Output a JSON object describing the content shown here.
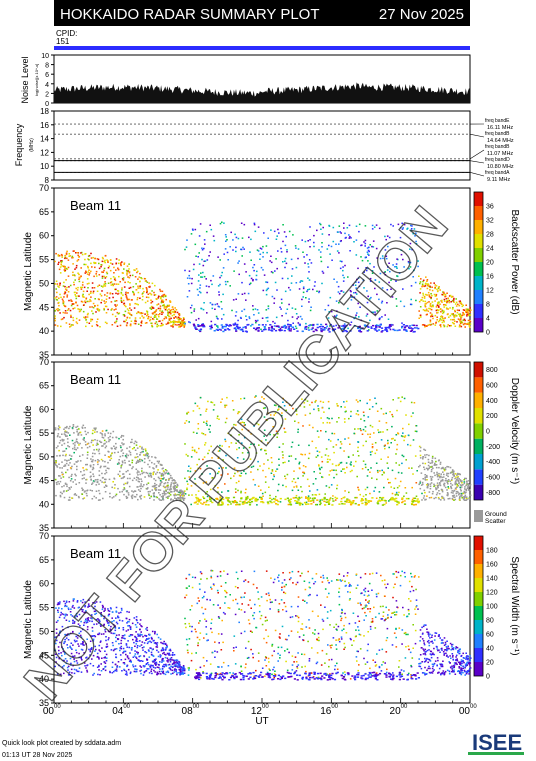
{
  "header": {
    "title": "HOKKAIDO RADAR SUMMARY PLOT",
    "date": "27 Nov 2025"
  },
  "cpid": {
    "label": "CPID:",
    "value": "151"
  },
  "noise_panel": {
    "ylabel": "Noise Level",
    "ylabel_unit": "log(noise)[x 10^-x]",
    "yticks": [
      "0",
      "2",
      "4",
      "6",
      "8",
      "10"
    ],
    "ylim": [
      0,
      10
    ]
  },
  "freq_panel": {
    "ylabel": "Frequency",
    "ylabel_unit": "(MHz)",
    "yticks": [
      "8",
      "10",
      "12",
      "14",
      "16",
      "18"
    ],
    "ylim": [
      8,
      18
    ],
    "bands": [
      {
        "label": "freq bandE",
        "value": "16.11 MHz",
        "freq": 16.11
      },
      {
        "label": "freq bandB",
        "value": "14.64 MHz",
        "freq": 14.64
      },
      {
        "label": "freq bandB",
        "value": "11.07 MHz",
        "freq": 11.07
      },
      {
        "label": "freq bandD",
        "value": "10.80 MHz",
        "freq": 10.8
      },
      {
        "label": "freq bandA",
        "value": "9.11 MHz",
        "freq": 9.11
      }
    ]
  },
  "panels": [
    {
      "id": "power",
      "beam": "Beam 11",
      "ylabel": "Magnetic Latitude",
      "yticks": [
        "35",
        "40",
        "45",
        "50",
        "55",
        "60",
        "65",
        "70"
      ],
      "cbar_label": "Backscatter Power (dB)",
      "cbar_ticks": [
        "0",
        "4",
        "8",
        "12",
        "16",
        "20",
        "24",
        "28",
        "32",
        "36"
      ],
      "cbar_colors": [
        "#5a00c8",
        "#3030ff",
        "#2080ff",
        "#00b4c8",
        "#00c050",
        "#80d000",
        "#e0e000",
        "#ffb000",
        "#ff6000",
        "#e01000"
      ]
    },
    {
      "id": "velocity",
      "beam": "Beam 11",
      "ylabel": "Magnetic Latitude",
      "yticks": [
        "35",
        "40",
        "45",
        "50",
        "55",
        "60",
        "65",
        "70"
      ],
      "cbar_label": "Doppler Velocity (m s⁻¹)",
      "cbar_ticks": [
        "800",
        "600",
        "400",
        "200",
        "0",
        "-200",
        "-400",
        "-600",
        "-800"
      ],
      "cbar_colors": [
        "#3a00b0",
        "#2040ff",
        "#00a0d0",
        "#00b060",
        "#80d000",
        "#e0e000",
        "#ffb000",
        "#ff6000",
        "#d01000"
      ],
      "ground_scatter": "Ground Scatter",
      "ground_color": "#9a9a9a"
    },
    {
      "id": "width",
      "beam": "Beam 11",
      "ylabel": "Magnetic Latitude",
      "yticks": [
        "35",
        "40",
        "45",
        "50",
        "55",
        "60",
        "65",
        "70"
      ],
      "cbar_label": "Spectral Width (m s⁻¹)",
      "cbar_ticks": [
        "0",
        "20",
        "40",
        "60",
        "80",
        "100",
        "120",
        "140",
        "160",
        "180"
      ],
      "cbar_colors": [
        "#5a00c8",
        "#3030ff",
        "#2080ff",
        "#00b4c8",
        "#00c050",
        "#80d000",
        "#e0e000",
        "#ffb000",
        "#ff6000",
        "#e01000"
      ]
    }
  ],
  "xaxis": {
    "label": "UT",
    "ticks": [
      {
        "h": "00",
        "m": "00"
      },
      {
        "h": "04",
        "m": "00"
      },
      {
        "h": "08",
        "m": "00"
      },
      {
        "h": "12",
        "m": "00"
      },
      {
        "h": "16",
        "m": "00"
      },
      {
        "h": "20",
        "m": "00"
      },
      {
        "h": "00",
        "m": "00"
      }
    ]
  },
  "watermark": "NOT FOR PUBLICATION",
  "footer": {
    "line1": "Quick look plot created by sddata.adm",
    "line2": "01:13 UT 28 Nov 2025",
    "logo": "ISEE"
  },
  "chart_data": [
    {
      "type": "bar",
      "title": "Noise Level",
      "ylim": [
        0,
        10
      ],
      "note": "noise level time series, approx 2-4 throughout day"
    },
    {
      "type": "line",
      "title": "Frequency",
      "ylim": [
        8,
        18
      ],
      "series": [
        {
          "name": "freq bandE",
          "values": [
            16.11
          ]
        },
        {
          "name": "freq bandB",
          "values": [
            14.64
          ]
        },
        {
          "name": "freq bandB",
          "values": [
            11.07
          ]
        },
        {
          "name": "freq bandD",
          "values": [
            10.8
          ]
        },
        {
          "name": "freq bandA",
          "values": [
            9.11
          ]
        }
      ]
    },
    {
      "type": "heatmap",
      "title": "Beam 11",
      "ylabel": "Magnetic Latitude",
      "ylim": [
        35,
        70
      ],
      "x_range_ut": [
        0,
        24
      ],
      "colorbar": "Backscatter Power (dB)",
      "clim": [
        0,
        36
      ]
    },
    {
      "type": "heatmap",
      "title": "Beam 11",
      "ylabel": "Magnetic Latitude",
      "ylim": [
        35,
        70
      ],
      "x_range_ut": [
        0,
        24
      ],
      "colorbar": "Doppler Velocity (m s⁻¹)",
      "clim": [
        -800,
        800
      ]
    },
    {
      "type": "heatmap",
      "title": "Beam 11",
      "ylabel": "Magnetic Latitude",
      "ylim": [
        35,
        70
      ],
      "x_range_ut": [
        0,
        24
      ],
      "colorbar": "Spectral Width (m s⁻¹)",
      "clim": [
        0,
        180
      ]
    }
  ]
}
